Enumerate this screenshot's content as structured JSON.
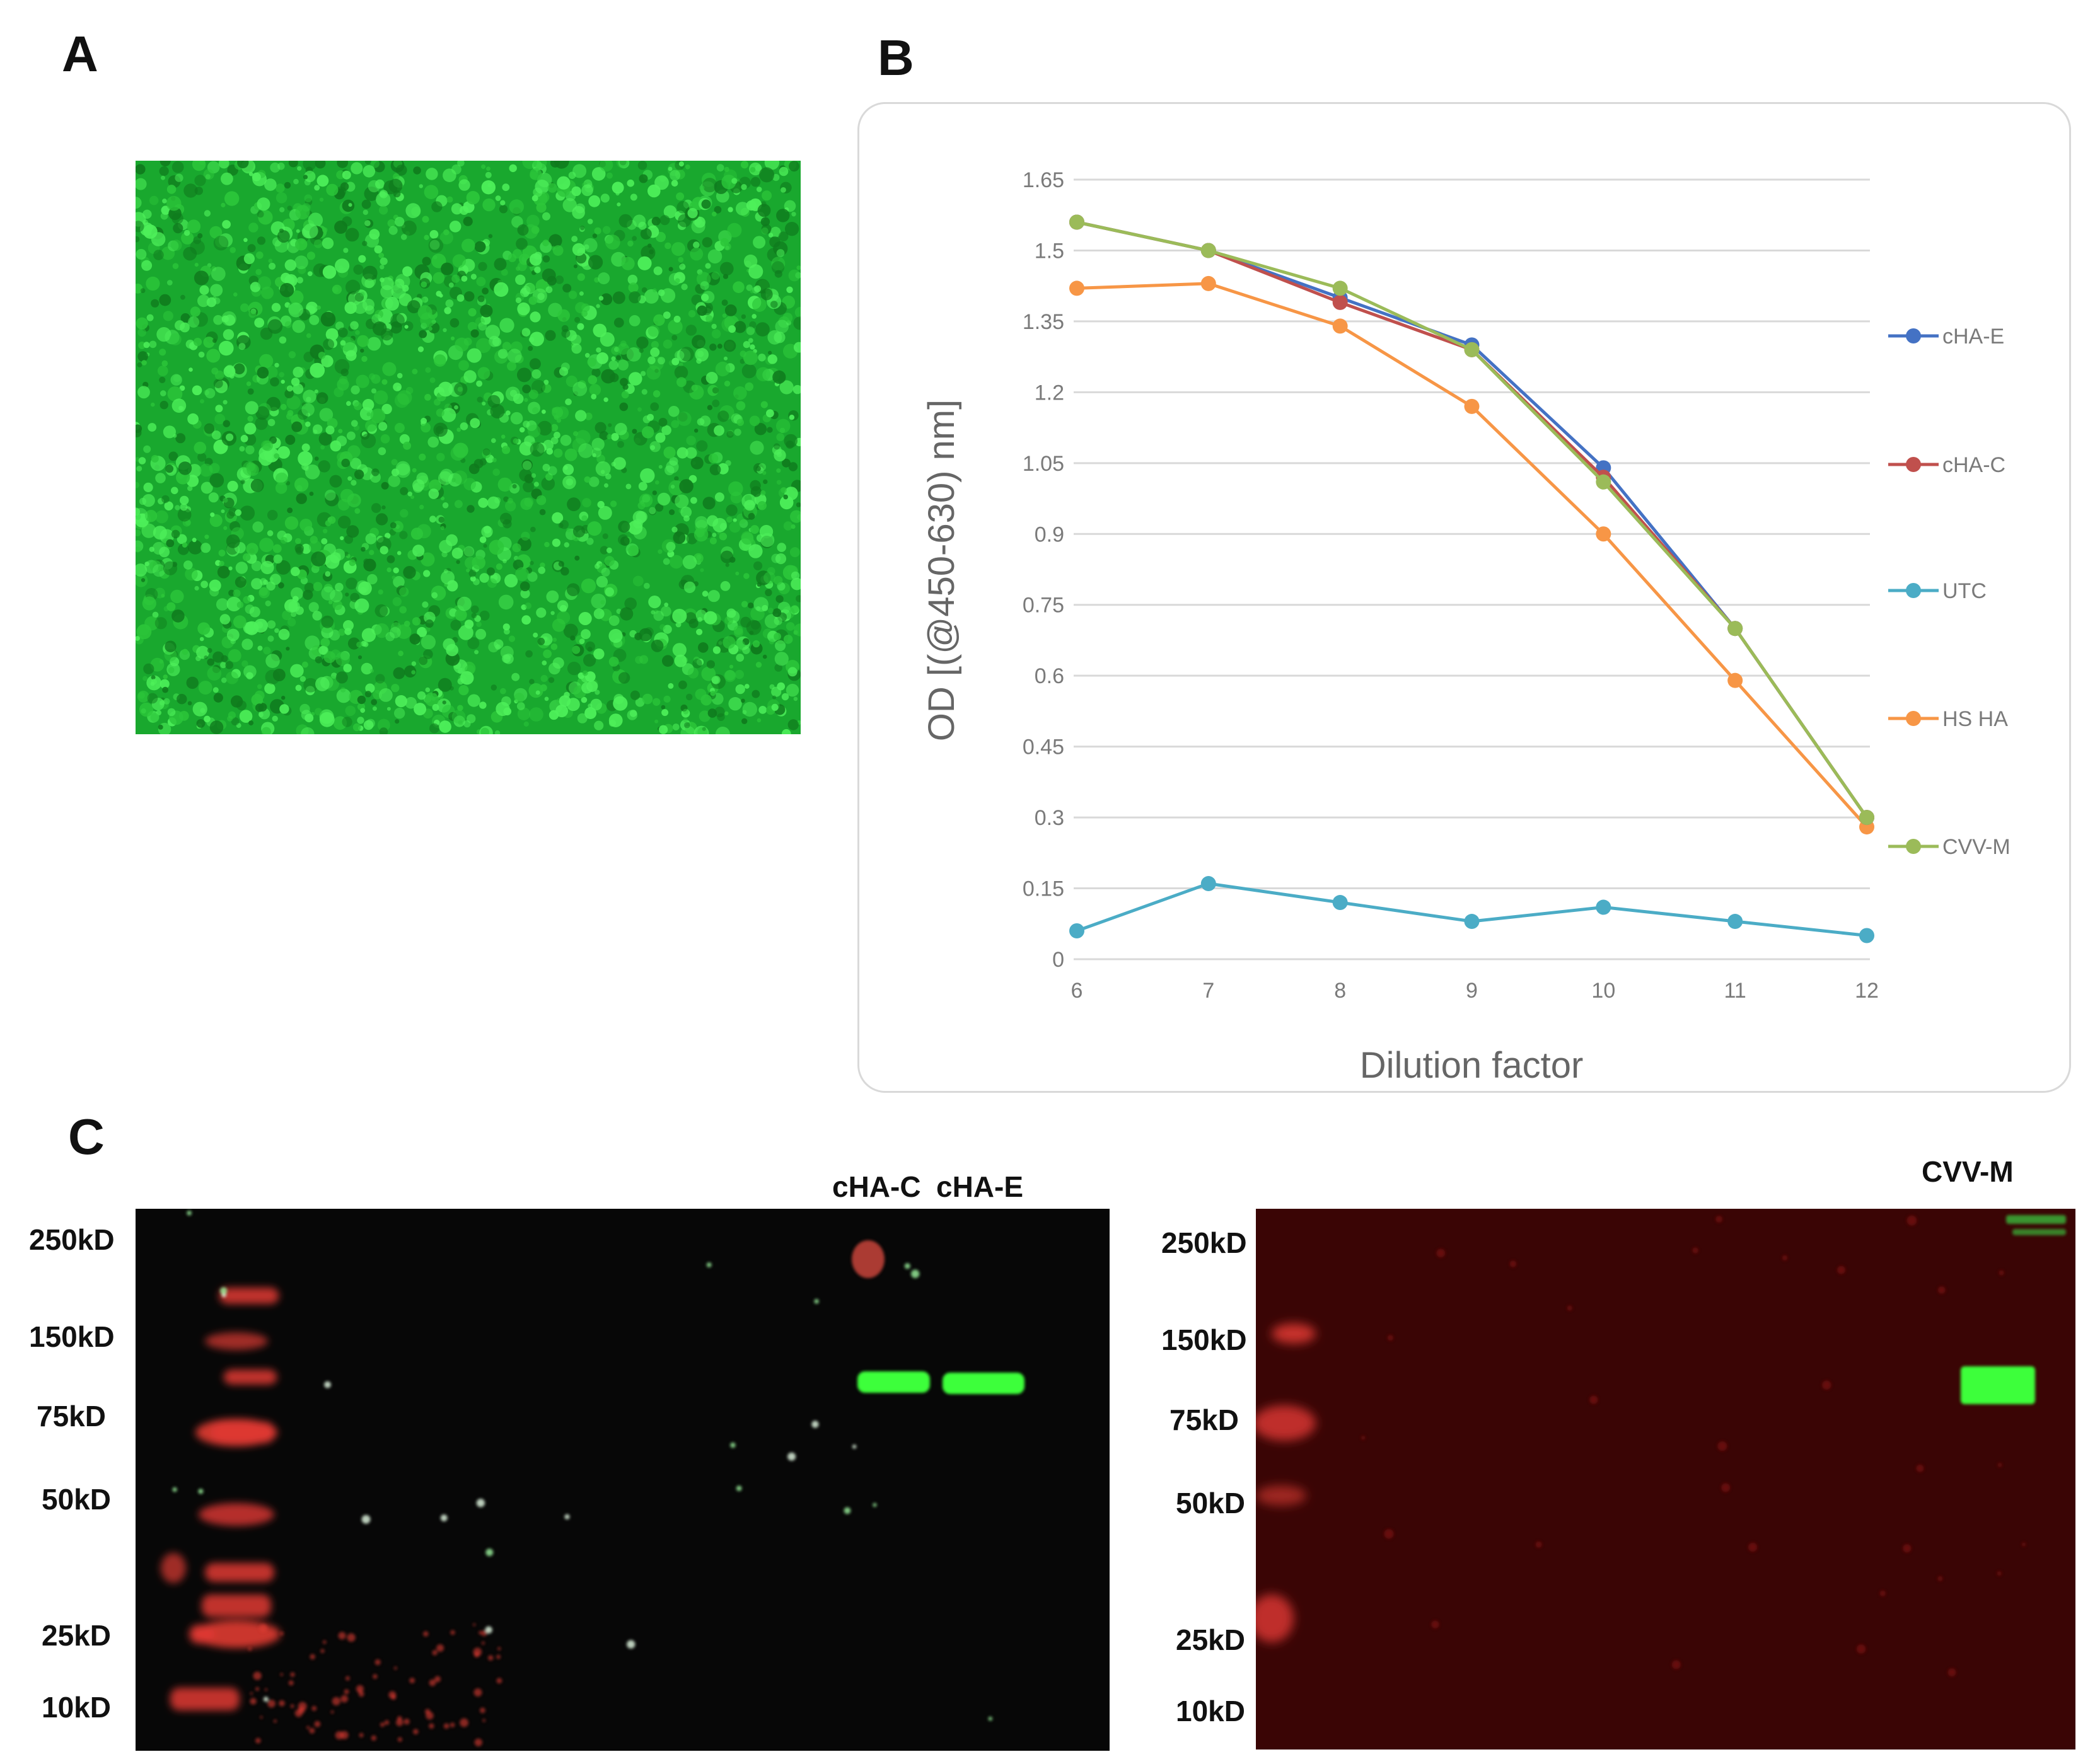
{
  "panels": {
    "a": "A",
    "b": "B",
    "c": "C"
  },
  "colors": {
    "micrograph_base": "#19a82e",
    "blot_left_bg": "#070707",
    "blot_right_bg": "#3a0505",
    "ladder_red": "#e03a32",
    "band_green": "#3dff3a"
  },
  "chart_data": {
    "type": "line",
    "x": [
      6,
      7,
      8,
      9,
      10,
      11,
      12
    ],
    "xlabel": "Dilution factor",
    "ylabel": "OD [(@450-630) nm]",
    "ylim": [
      0,
      1.65
    ],
    "y_ticks": [
      "0",
      "0.15",
      "0.3",
      "0.45",
      "0.6",
      "0.75",
      "0.9",
      "1.05",
      "1.2",
      "1.35",
      "1.5",
      "1.65"
    ],
    "x_ticks": [
      "6",
      "7",
      "8",
      "9",
      "10",
      "11",
      "12"
    ],
    "grid": true,
    "legend_position": "right",
    "series": [
      {
        "name": "cHA-E",
        "color": "#4472c4",
        "values": [
          1.56,
          1.5,
          1.4,
          1.3,
          1.04,
          0.7,
          0.3
        ]
      },
      {
        "name": "cHA-C",
        "color": "#c0504d",
        "values": [
          1.56,
          1.5,
          1.39,
          1.29,
          1.02,
          0.7,
          0.3
        ]
      },
      {
        "name": "UTC",
        "color": "#4bacc6",
        "values": [
          0.06,
          0.16,
          0.12,
          0.08,
          0.11,
          0.08,
          0.05
        ]
      },
      {
        "name": "HS HA",
        "color": "#f79646",
        "values": [
          1.42,
          1.43,
          1.34,
          1.17,
          0.9,
          0.59,
          0.28
        ]
      },
      {
        "name": "CVV-M",
        "color": "#9bbb59",
        "values": [
          1.56,
          1.5,
          1.42,
          1.29,
          1.01,
          0.7,
          0.3
        ]
      }
    ]
  },
  "blot_left": {
    "markers": [
      "250kD",
      "150kD",
      "75kD",
      "50kD",
      "25kD",
      "10kD"
    ],
    "lane_labels": [
      "cHA-C",
      "cHA-E"
    ]
  },
  "blot_right": {
    "markers": [
      "250kD",
      "150kD",
      "75kD",
      "50kD",
      "25kD",
      "10kD"
    ],
    "lane_labels": [
      "CVV-M"
    ]
  }
}
